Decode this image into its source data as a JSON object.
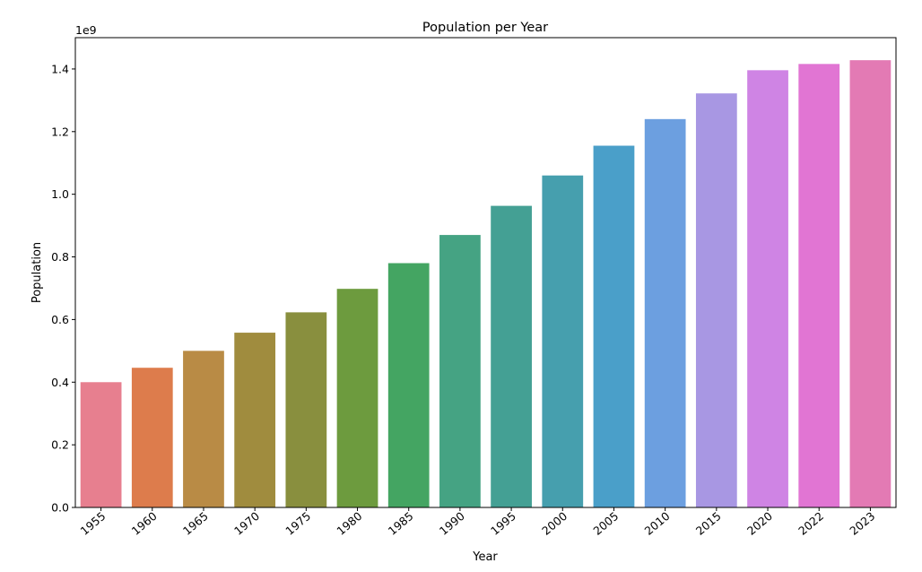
{
  "chart_data": {
    "type": "bar",
    "title": "Population per Year",
    "xlabel": "Year",
    "ylabel": "Population",
    "y_offset_label": "1e9",
    "categories": [
      "1955",
      "1960",
      "1965",
      "1970",
      "1975",
      "1980",
      "1985",
      "1990",
      "1995",
      "2000",
      "2005",
      "2010",
      "2015",
      "2020",
      "2022",
      "2023"
    ],
    "values": [
      0.4,
      0.446,
      0.5,
      0.558,
      0.623,
      0.698,
      0.78,
      0.87,
      0.963,
      1.06,
      1.155,
      1.24,
      1.322,
      1.396,
      1.416,
      1.428
    ],
    "value_multiplier": 1000000000,
    "ylim": [
      0,
      1.5
    ],
    "yticks": [
      0.0,
      0.2,
      0.4,
      0.6,
      0.8,
      1.0,
      1.2,
      1.4
    ],
    "ytick_labels": [
      "0.0",
      "0.2",
      "0.4",
      "0.6",
      "0.8",
      "1.0",
      "1.2",
      "1.4"
    ],
    "grid": false,
    "legend": "none",
    "colors": [
      "#e77f8f",
      "#dd7c4c",
      "#b98b45",
      "#a08c3e",
      "#898f3e",
      "#6d9b3e",
      "#44a562",
      "#45a383",
      "#44a094",
      "#469fae",
      "#4a9fc9",
      "#6c9fe0",
      "#a897e3",
      "#cf84e4",
      "#e175d3",
      "#e37ab4"
    ]
  }
}
